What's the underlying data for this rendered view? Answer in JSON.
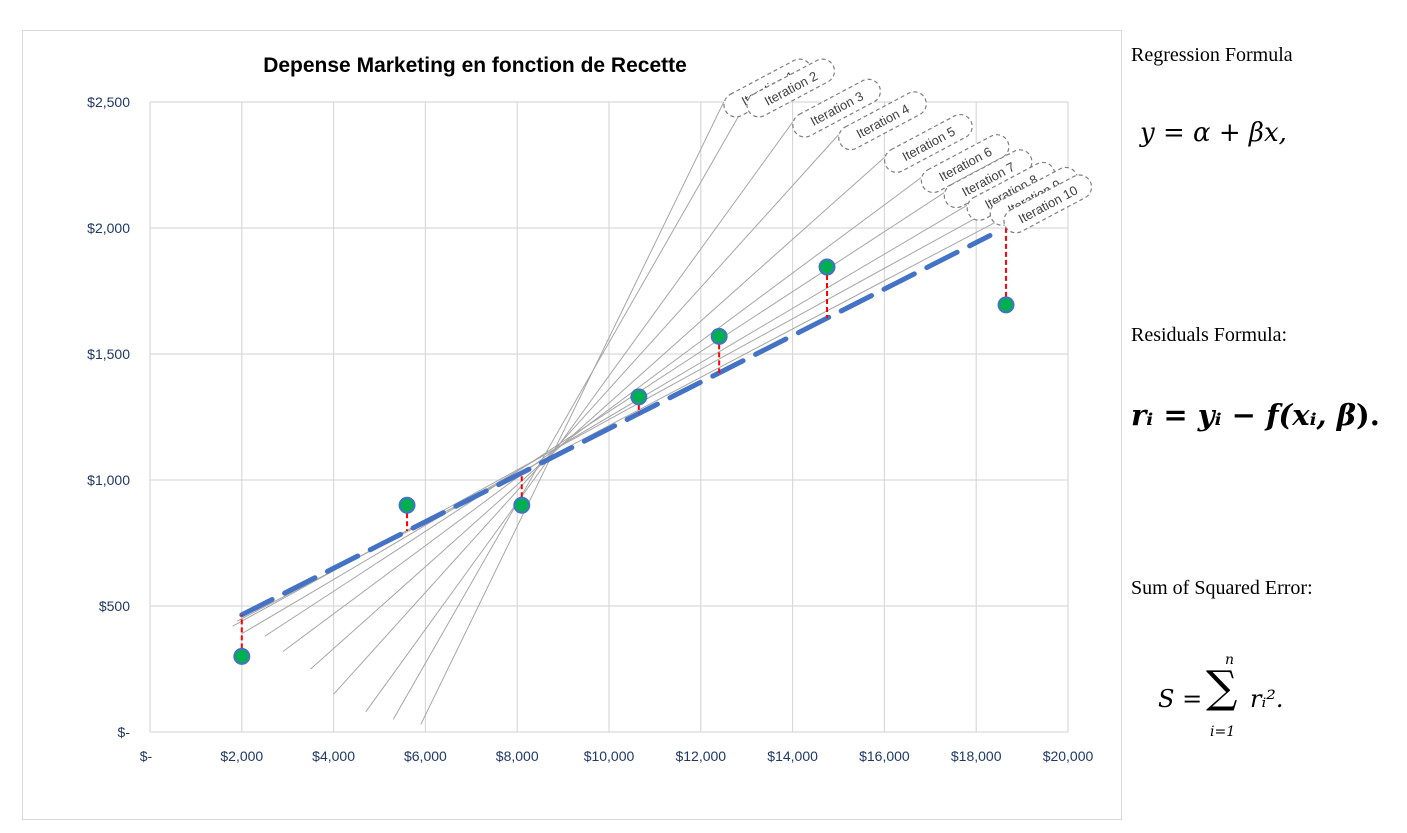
{
  "chart_data": {
    "type": "scatter",
    "title": "Depense Marketing en fonction de Recette",
    "xlim": [
      0,
      20000
    ],
    "ylim": [
      0,
      2500
    ],
    "x_ticks": [
      0,
      2000,
      4000,
      6000,
      8000,
      10000,
      12000,
      14000,
      16000,
      18000,
      20000
    ],
    "x_tick_labels": [
      "$-",
      "$2,000",
      "$4,000",
      "$6,000",
      "$8,000",
      "$10,000",
      "$12,000",
      "$14,000",
      "$16,000",
      "$18,000",
      "$20,000"
    ],
    "y_ticks": [
      0,
      500,
      1000,
      1500,
      2000,
      2500
    ],
    "y_tick_labels": [
      "$-",
      "$500",
      "$1,000",
      "$1,500",
      "$2,000",
      "$2,500"
    ],
    "grid": true,
    "points": [
      {
        "x": 2000,
        "y": 300
      },
      {
        "x": 5600,
        "y": 900
      },
      {
        "x": 8100,
        "y": 900
      },
      {
        "x": 10650,
        "y": 1330
      },
      {
        "x": 12400,
        "y": 1570
      },
      {
        "x": 14750,
        "y": 1845
      },
      {
        "x": 18650,
        "y": 1695
      }
    ],
    "fitted_line": {
      "x1": 2000,
      "y1": 465,
      "x2": 18300,
      "y2": 1970
    },
    "iterations": [
      {
        "label": "Iteration 1",
        "x1": 5900,
        "y1": 30,
        "x2": 12500,
        "y2": 2500
      },
      {
        "label": "Iteration 2",
        "x1": 5300,
        "y1": 50,
        "x2": 13000,
        "y2": 2500
      },
      {
        "label": "Iteration 3",
        "x1": 4700,
        "y1": 80,
        "x2": 14000,
        "y2": 2420
      },
      {
        "label": "Iteration 4",
        "x1": 4000,
        "y1": 150,
        "x2": 15000,
        "y2": 2370
      },
      {
        "label": "Iteration 5",
        "x1": 3500,
        "y1": 250,
        "x2": 16000,
        "y2": 2280
      },
      {
        "label": "Iteration 6",
        "x1": 2900,
        "y1": 320,
        "x2": 16800,
        "y2": 2200
      },
      {
        "label": "Iteration 7",
        "x1": 2500,
        "y1": 380,
        "x2": 17300,
        "y2": 2140
      },
      {
        "label": "Iteration 8",
        "x1": 2000,
        "y1": 390,
        "x2": 17800,
        "y2": 2090
      },
      {
        "label": "Iteration 9",
        "x1": 1800,
        "y1": 420,
        "x2": 18300,
        "y2": 2070
      },
      {
        "label": "Iteration 10",
        "x1": 1900,
        "y1": 440,
        "x2": 18600,
        "y2": 2040
      }
    ],
    "colors": {
      "point_fill": "#00b050",
      "point_stroke": "#4472c4",
      "fit_line": "#4472c4",
      "iteration_line": "#a6a6a6",
      "residual": "#ff0000",
      "grid": "#d9d9d9",
      "axis_text": "#1f3864",
      "title": "#000000"
    }
  },
  "formulas": {
    "regression_label": "Regression Formula",
    "regression_expr": "y = α + βx,",
    "residuals_label": "Residuals Formula:",
    "residuals_expr": "rᵢ = yᵢ − f(xᵢ, β).",
    "sse_label": "Sum of Squared Error:",
    "sse_lhs": "S =",
    "sse_sigma": "∑",
    "sse_upper": "n",
    "sse_lower": "i=1",
    "sse_term": "rᵢ².",
    "regression_parts": {
      "y": "y",
      "eq": "=",
      "alpha": "α",
      "plus": "+",
      "beta": "βx,"
    },
    "residual_parts": {
      "r": "rᵢ",
      "eq": "=",
      "y": "yᵢ",
      "minus": "−",
      "f": "f(xᵢ,",
      "b": "β",
      "end": ")."
    }
  }
}
